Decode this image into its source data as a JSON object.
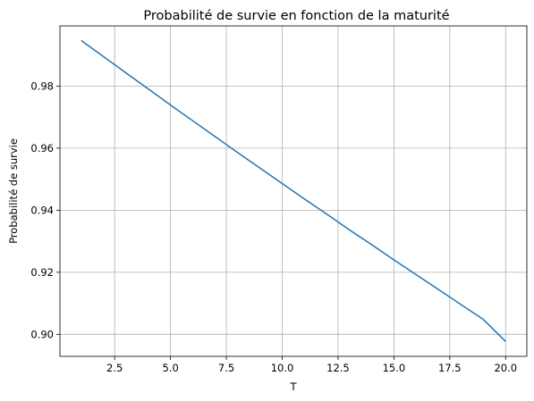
{
  "chart_data": {
    "type": "line",
    "title": "Probabilité de survie en fonction de la maturité",
    "xlabel": "T",
    "ylabel": "Probabilité de survie",
    "xlim": [
      0.05,
      20.95
    ],
    "ylim": [
      0.8929,
      0.9994
    ],
    "xticks": [
      2.5,
      5.0,
      7.5,
      10.0,
      12.5,
      15.0,
      17.5,
      20.0
    ],
    "xtick_labels": [
      "2.5",
      "5.0",
      "7.5",
      "10.0",
      "12.5",
      "15.0",
      "17.5",
      "20.0"
    ],
    "yticks": [
      0.9,
      0.92,
      0.94,
      0.96,
      0.98
    ],
    "ytick_labels": [
      "0.90",
      "0.92",
      "0.94",
      "0.96",
      "0.98"
    ],
    "grid": true,
    "series": [
      {
        "color": "#1f77b4",
        "x": [
          1,
          2,
          3,
          4,
          5,
          6,
          7,
          8,
          9,
          10,
          11,
          12,
          13,
          14,
          15,
          16,
          17,
          18,
          19,
          20
        ],
        "y": [
          0.9947,
          0.9895,
          0.9843,
          0.9791,
          0.9739,
          0.9688,
          0.9637,
          0.9586,
          0.9536,
          0.9486,
          0.9436,
          0.9387,
          0.9337,
          0.9289,
          0.924,
          0.9192,
          0.9144,
          0.9096,
          0.9048,
          0.8977
        ]
      }
    ]
  }
}
